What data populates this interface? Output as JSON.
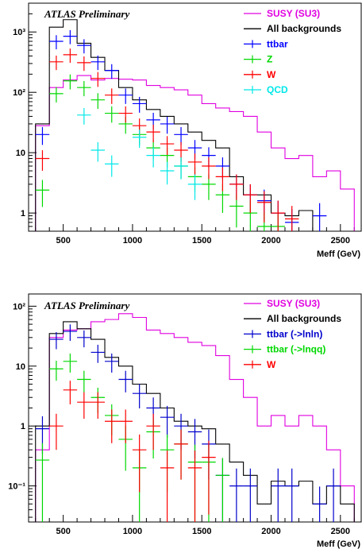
{
  "colors": {
    "susy": "#e000e0",
    "all_bkg": "#000000",
    "ttbar": "#0000ff",
    "z": "#00d800",
    "w": "#ff0000",
    "qcd": "#00e8e8",
    "ttbar_lnln": "#0000cc",
    "ttbar_lnqq": "#00d800"
  },
  "chart_data": [
    {
      "type": "histogram",
      "atlas_label": "ATLAS Preliminary",
      "xlabel": "Meff (GeV)",
      "ylabel": "",
      "log_y": true,
      "xlim": [
        250,
        2650
      ],
      "ylim": [
        0.5,
        3000
      ],
      "x_ticks": [
        500,
        1000,
        1500,
        2000,
        2500
      ],
      "x_tick_labels": [
        "500",
        "1000",
        "1500",
        "2000",
        "2500"
      ],
      "y_ticks": [
        1,
        10,
        100,
        1000
      ],
      "y_tick_labels": [
        "1",
        "10",
        "10²",
        "10³"
      ],
      "legend_position": "top-right",
      "bin_edges": [
        300,
        400,
        500,
        600,
        700,
        800,
        900,
        1000,
        1100,
        1200,
        1300,
        1400,
        1500,
        1600,
        1700,
        1800,
        1900,
        2000,
        2100,
        2200,
        2300,
        2400,
        2500,
        2600
      ],
      "series": [
        {
          "name": "SUSY (SU3)",
          "color_key": "susy",
          "style": "step",
          "values": [
            28,
            120,
            160,
            190,
            160,
            170,
            165,
            160,
            130,
            120,
            110,
            90,
            65,
            55,
            48,
            40,
            22,
            12,
            8,
            9,
            4,
            5,
            2.5
          ]
        },
        {
          "name": "All backgrounds",
          "color_key": "all_bkg",
          "style": "step",
          "values": [
            30,
            1200,
            1600,
            650,
            380,
            230,
            120,
            75,
            52,
            40,
            30,
            22,
            16,
            12,
            4,
            2,
            2,
            1,
            0.9,
            1.1,
            0.5,
            0,
            0
          ]
        },
        {
          "name": "ttbar",
          "color_key": "ttbar",
          "style": "errorbar",
          "values": [
            20,
            700,
            850,
            600,
            320,
            230,
            90,
            65,
            35,
            30,
            20,
            12,
            9,
            6,
            3,
            2,
            1.6,
            1,
            0.7,
            0,
            0.9,
            0,
            0
          ]
        },
        {
          "name": "Z",
          "color_key": "z",
          "style": "errorbar",
          "values": [
            2.4,
            95,
            155,
            120,
            75,
            45,
            30,
            20,
            12,
            9,
            6,
            4,
            3,
            2,
            1.3,
            1,
            0.6,
            0.6,
            0,
            0,
            0,
            0,
            0
          ]
        },
        {
          "name": "W",
          "color_key": "w",
          "style": "errorbar",
          "values": [
            8,
            320,
            420,
            310,
            170,
            90,
            45,
            28,
            22,
            14,
            11,
            7,
            6,
            4,
            3,
            2,
            1.5,
            1,
            0.8,
            0,
            0,
            0,
            0
          ]
        },
        {
          "name": "QCD",
          "color_key": "qcd",
          "style": "errorbar",
          "values": [
            0,
            0,
            0,
            42,
            11,
            6.5,
            0,
            18,
            9,
            5,
            6,
            3,
            0,
            0,
            0,
            0,
            0,
            0,
            0,
            0,
            0,
            0,
            0
          ]
        }
      ]
    },
    {
      "type": "histogram",
      "atlas_label": "ATLAS Preliminary",
      "xlabel": "Meff (GeV)",
      "ylabel": "",
      "log_y": true,
      "xlim": [
        250,
        2650
      ],
      "ylim": [
        0.025,
        160
      ],
      "x_ticks": [
        500,
        1000,
        1500,
        2000,
        2500
      ],
      "x_tick_labels": [
        "500",
        "1000",
        "1500",
        "2000",
        "2500"
      ],
      "y_ticks": [
        0.1,
        1,
        10,
        100
      ],
      "y_tick_labels": [
        "10⁻¹",
        "1",
        "10",
        "10²"
      ],
      "legend_position": "top-right",
      "bin_edges": [
        300,
        400,
        500,
        600,
        700,
        800,
        900,
        1000,
        1100,
        1200,
        1300,
        1400,
        1500,
        1600,
        1700,
        1800,
        1900,
        2000,
        2100,
        2200,
        2300,
        2400,
        2500,
        2600
      ],
      "series": [
        {
          "name": "SUSY (SU3)",
          "color_key": "susy",
          "style": "step",
          "values": [
            0.4,
            30,
            40,
            42,
            55,
            60,
            75,
            65,
            40,
            35,
            30,
            25,
            22,
            15,
            6,
            3,
            1,
            1.5,
            1,
            1.5,
            1,
            0.4,
            0.1
          ]
        },
        {
          "name": "All backgrounds",
          "color_key": "all_bkg",
          "style": "step",
          "values": [
            1,
            35,
            55,
            42,
            28,
            14,
            10,
            5,
            3.5,
            2,
            1.2,
            1,
            0.9,
            0.5,
            0.25,
            0.15,
            0.05,
            0.12,
            0.1,
            0.12,
            0.05,
            0.1,
            0.05
          ]
        },
        {
          "name": "ttbar (->lnln)",
          "color_key": "ttbar_lnln",
          "style": "errorbar",
          "values": [
            0.9,
            28,
            38,
            30,
            17,
            12,
            6,
            3.5,
            2,
            1.4,
            1,
            0.8,
            0.5,
            0.15,
            0.1,
            0.1,
            0,
            0.1,
            0.1,
            0,
            0.05,
            0.1,
            0
          ]
        },
        {
          "name": "ttbar (->lnqq)",
          "color_key": "ttbar_lnqq",
          "style": "errorbar",
          "values": [
            0.27,
            9,
            12,
            6,
            3,
            1.5,
            0.6,
            0.2,
            0.8,
            0.4,
            0.5,
            0.25,
            0.25,
            0.15,
            0,
            0,
            0,
            0,
            0,
            0,
            0,
            0,
            0
          ]
        },
        {
          "name": "W",
          "color_key": "w",
          "style": "errorbar",
          "values": [
            0,
            1,
            4,
            2.5,
            2.5,
            1.2,
            1.2,
            0.4,
            1,
            0.2,
            0.5,
            0.2,
            0.3,
            0,
            0,
            0,
            0,
            0,
            0,
            0,
            0,
            0,
            0
          ]
        }
      ]
    }
  ]
}
